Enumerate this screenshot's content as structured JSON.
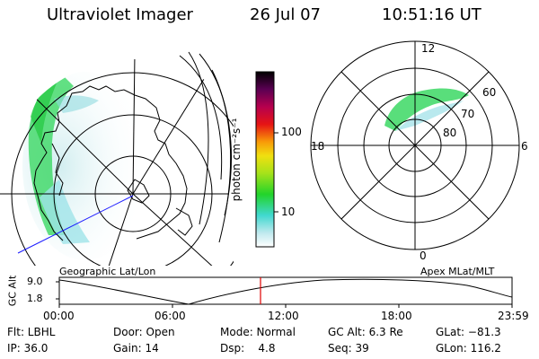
{
  "header": {
    "instrument": "Ultraviolet Imager",
    "date": "26 Jul 07",
    "time": "10:51:16 UT"
  },
  "colorbar": {
    "unit_label": "photon cm⁻²s⁻¹",
    "ticks": [
      "100",
      "10"
    ]
  },
  "polar_plot": {
    "mlt_labels": [
      "12",
      "6",
      "0",
      "18"
    ],
    "lat_labels": [
      "60",
      "70",
      "80"
    ]
  },
  "map_captions": {
    "left": "Geographic Lat/Lon",
    "right": "Apex MLat/MLT"
  },
  "altitude_plot": {
    "ylabel": "GC Alt",
    "y_ticks": [
      "9.0",
      "1.8"
    ],
    "x_ticks": [
      "00:00",
      "06:00",
      "12:00",
      "18:00",
      "23:59"
    ],
    "marker_time": "10:51"
  },
  "info": {
    "flt": "Flt: LBHL",
    "ip": "IP: 36.0",
    "door": "Door: Open",
    "gain": "Gain: 14",
    "mode": "Mode: Normal",
    "dsp": "Dsp:    4.8",
    "gc_alt": "GC Alt: 6.3 Re",
    "seq": "Seq: 39",
    "glat": "GLat: −81.3",
    "glon": "GLon: 116.2"
  }
}
